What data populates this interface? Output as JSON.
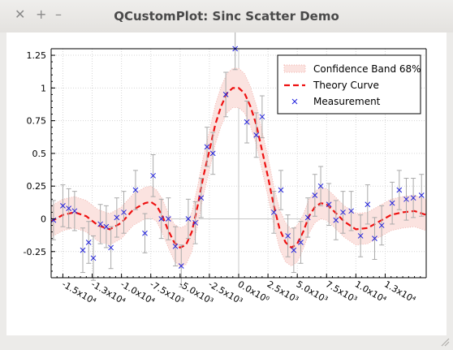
{
  "window": {
    "title": "QCustomPlot: Sinc Scatter Demo",
    "buttons": [
      {
        "name": "close-icon",
        "glyph": "✕"
      },
      {
        "name": "maximize-icon",
        "glyph": "+"
      },
      {
        "name": "minimize-icon",
        "glyph": "–"
      }
    ]
  },
  "chart_data": {
    "type": "scatter",
    "xlim": [
      -16000,
      16000
    ],
    "ylim": [
      -0.45,
      1.3
    ],
    "x_ticks": [
      {
        "value": -15000,
        "label": "-1.5x10⁴"
      },
      {
        "value": -12500,
        "label": "-1.3x10⁴"
      },
      {
        "value": -10000,
        "label": "-1.0x10⁴"
      },
      {
        "value": -7500,
        "label": "-7.5x10³"
      },
      {
        "value": -5000,
        "label": "-5.0x10³"
      },
      {
        "value": -2500,
        "label": "-2.5x10³"
      },
      {
        "value": 0,
        "label": "0.0x10⁰"
      },
      {
        "value": 2500,
        "label": "2.5x10³"
      },
      {
        "value": 5000,
        "label": "5.0x10³"
      },
      {
        "value": 7500,
        "label": "7.5x10³"
      },
      {
        "value": 10000,
        "label": "1.0x10⁴"
      },
      {
        "value": 12500,
        "label": "1.3x10⁴"
      }
    ],
    "y_ticks": [
      {
        "value": 1.25,
        "label": "1.25"
      },
      {
        "value": 1,
        "label": "1"
      },
      {
        "value": 0.75,
        "label": "0.75"
      },
      {
        "value": 0.5,
        "label": "0.5"
      },
      {
        "value": 0.25,
        "label": "0.25"
      },
      {
        "value": 0,
        "label": "0"
      },
      {
        "value": -0.25,
        "label": "-0.25"
      }
    ],
    "grid": true,
    "legend_position": "top-right",
    "legend": [
      {
        "name": "Confidence Band 68%",
        "style": "band"
      },
      {
        "name": "Theory Curve",
        "style": "dashed-line"
      },
      {
        "name": "Measurement",
        "style": "cross"
      }
    ],
    "colors": {
      "band_fill": "#fbe3e0",
      "band_edge": "#f1b6b0",
      "curve": "#ee1111",
      "marker": "#2222dd",
      "error_bar": "#aaaaaa"
    },
    "theory_x": [
      -16000,
      -15000,
      -14000,
      -13000,
      -12000,
      -11000,
      -10000,
      -9000,
      -8000,
      -7500,
      -7000,
      -6500,
      -6000,
      -5500,
      -5000,
      -4500,
      -4000,
      -3500,
      -3000,
      -2500,
      -2000,
      -1500,
      -1000,
      -500,
      0,
      500,
      1000,
      1500,
      2000,
      2500,
      3000,
      3500,
      4000,
      4500,
      5000,
      5500,
      6000,
      6500,
      7000,
      7500,
      8000,
      9000,
      10000,
      11000,
      12000,
      13000,
      14000,
      15000,
      16000
    ],
    "theory_y": [
      -0.02,
      0.03,
      0.05,
      0.02,
      -0.05,
      -0.08,
      -0.03,
      0.07,
      0.12,
      0.13,
      0.1,
      0.02,
      -0.09,
      -0.18,
      -0.22,
      -0.2,
      -0.1,
      0.1,
      0.33,
      0.52,
      0.72,
      0.86,
      0.96,
      1.0,
      1.0,
      0.96,
      0.86,
      0.72,
      0.52,
      0.32,
      0.1,
      -0.08,
      -0.18,
      -0.22,
      -0.19,
      -0.1,
      0.02,
      0.09,
      0.12,
      0.11,
      0.07,
      -0.02,
      -0.08,
      -0.07,
      -0.02,
      0.03,
      0.05,
      0.06,
      0.03
    ],
    "band_halfwidth": [
      0.12,
      0.12,
      0.12,
      0.12,
      0.12,
      0.12,
      0.12,
      0.12,
      0.12,
      0.12,
      0.12,
      0.13,
      0.13,
      0.14,
      0.15,
      0.15,
      0.15,
      0.15,
      0.15,
      0.15,
      0.15,
      0.15,
      0.15,
      0.15,
      0.15,
      0.15,
      0.15,
      0.15,
      0.15,
      0.15,
      0.15,
      0.15,
      0.15,
      0.14,
      0.14,
      0.13,
      0.13,
      0.12,
      0.12,
      0.12,
      0.12,
      0.12,
      0.12,
      0.12,
      0.12,
      0.12,
      0.12,
      0.12,
      0.12
    ],
    "measurements": [
      {
        "x": -15800,
        "y": -0.01,
        "err": 0.15
      },
      {
        "x": -15000,
        "y": 0.1,
        "err": 0.16
      },
      {
        "x": -14500,
        "y": 0.08,
        "err": 0.15
      },
      {
        "x": -14000,
        "y": 0.06,
        "err": 0.15
      },
      {
        "x": -13300,
        "y": -0.24,
        "err": 0.17
      },
      {
        "x": -12800,
        "y": -0.18,
        "err": 0.16
      },
      {
        "x": -12400,
        "y": -0.3,
        "err": 0.17
      },
      {
        "x": -11800,
        "y": -0.04,
        "err": 0.15
      },
      {
        "x": -11300,
        "y": -0.06,
        "err": 0.16
      },
      {
        "x": -10900,
        "y": -0.22,
        "err": 0.16
      },
      {
        "x": -10400,
        "y": 0.01,
        "err": 0.15
      },
      {
        "x": -9800,
        "y": 0.05,
        "err": 0.16
      },
      {
        "x": -8800,
        "y": 0.22,
        "err": 0.15
      },
      {
        "x": -8000,
        "y": -0.11,
        "err": 0.15
      },
      {
        "x": -7300,
        "y": 0.33,
        "err": 0.16
      },
      {
        "x": -6600,
        "y": 0.0,
        "err": 0.15
      },
      {
        "x": -6000,
        "y": 0.0,
        "err": 0.16
      },
      {
        "x": -5400,
        "y": -0.21,
        "err": 0.15
      },
      {
        "x": -4900,
        "y": -0.36,
        "err": 0.16
      },
      {
        "x": -4300,
        "y": 0.0,
        "err": 0.15
      },
      {
        "x": -3700,
        "y": -0.03,
        "err": 0.16
      },
      {
        "x": -3200,
        "y": 0.16,
        "err": 0.15
      },
      {
        "x": -2700,
        "y": 0.55,
        "err": 0.15
      },
      {
        "x": -2200,
        "y": 0.5,
        "err": 0.16
      },
      {
        "x": -1100,
        "y": 0.95,
        "err": 0.17
      },
      {
        "x": -300,
        "y": 1.3,
        "err": 0.16
      },
      {
        "x": 700,
        "y": 0.74,
        "err": 0.16
      },
      {
        "x": 1500,
        "y": 0.64,
        "err": 0.17
      },
      {
        "x": 2000,
        "y": 0.78,
        "err": 0.16
      },
      {
        "x": 3000,
        "y": 0.05,
        "err": 0.16
      },
      {
        "x": 3600,
        "y": 0.22,
        "err": 0.15
      },
      {
        "x": 4200,
        "y": -0.13,
        "err": 0.16
      },
      {
        "x": 4700,
        "y": -0.24,
        "err": 0.17
      },
      {
        "x": 5300,
        "y": -0.18,
        "err": 0.16
      },
      {
        "x": 5900,
        "y": 0.01,
        "err": 0.15
      },
      {
        "x": 6500,
        "y": 0.18,
        "err": 0.16
      },
      {
        "x": 7000,
        "y": 0.25,
        "err": 0.15
      },
      {
        "x": 7700,
        "y": 0.11,
        "err": 0.16
      },
      {
        "x": 8300,
        "y": -0.01,
        "err": 0.15
      },
      {
        "x": 8900,
        "y": 0.05,
        "err": 0.16
      },
      {
        "x": 9600,
        "y": 0.06,
        "err": 0.15
      },
      {
        "x": 10400,
        "y": -0.13,
        "err": 0.16
      },
      {
        "x": 11000,
        "y": 0.11,
        "err": 0.15
      },
      {
        "x": 11600,
        "y": -0.15,
        "err": 0.16
      },
      {
        "x": 12200,
        "y": -0.05,
        "err": 0.15
      },
      {
        "x": 13100,
        "y": 0.12,
        "err": 0.16
      },
      {
        "x": 13700,
        "y": 0.22,
        "err": 0.15
      },
      {
        "x": 14300,
        "y": 0.15,
        "err": 0.16
      },
      {
        "x": 14900,
        "y": 0.16,
        "err": 0.15
      },
      {
        "x": 15600,
        "y": 0.18,
        "err": 0.16
      }
    ]
  }
}
